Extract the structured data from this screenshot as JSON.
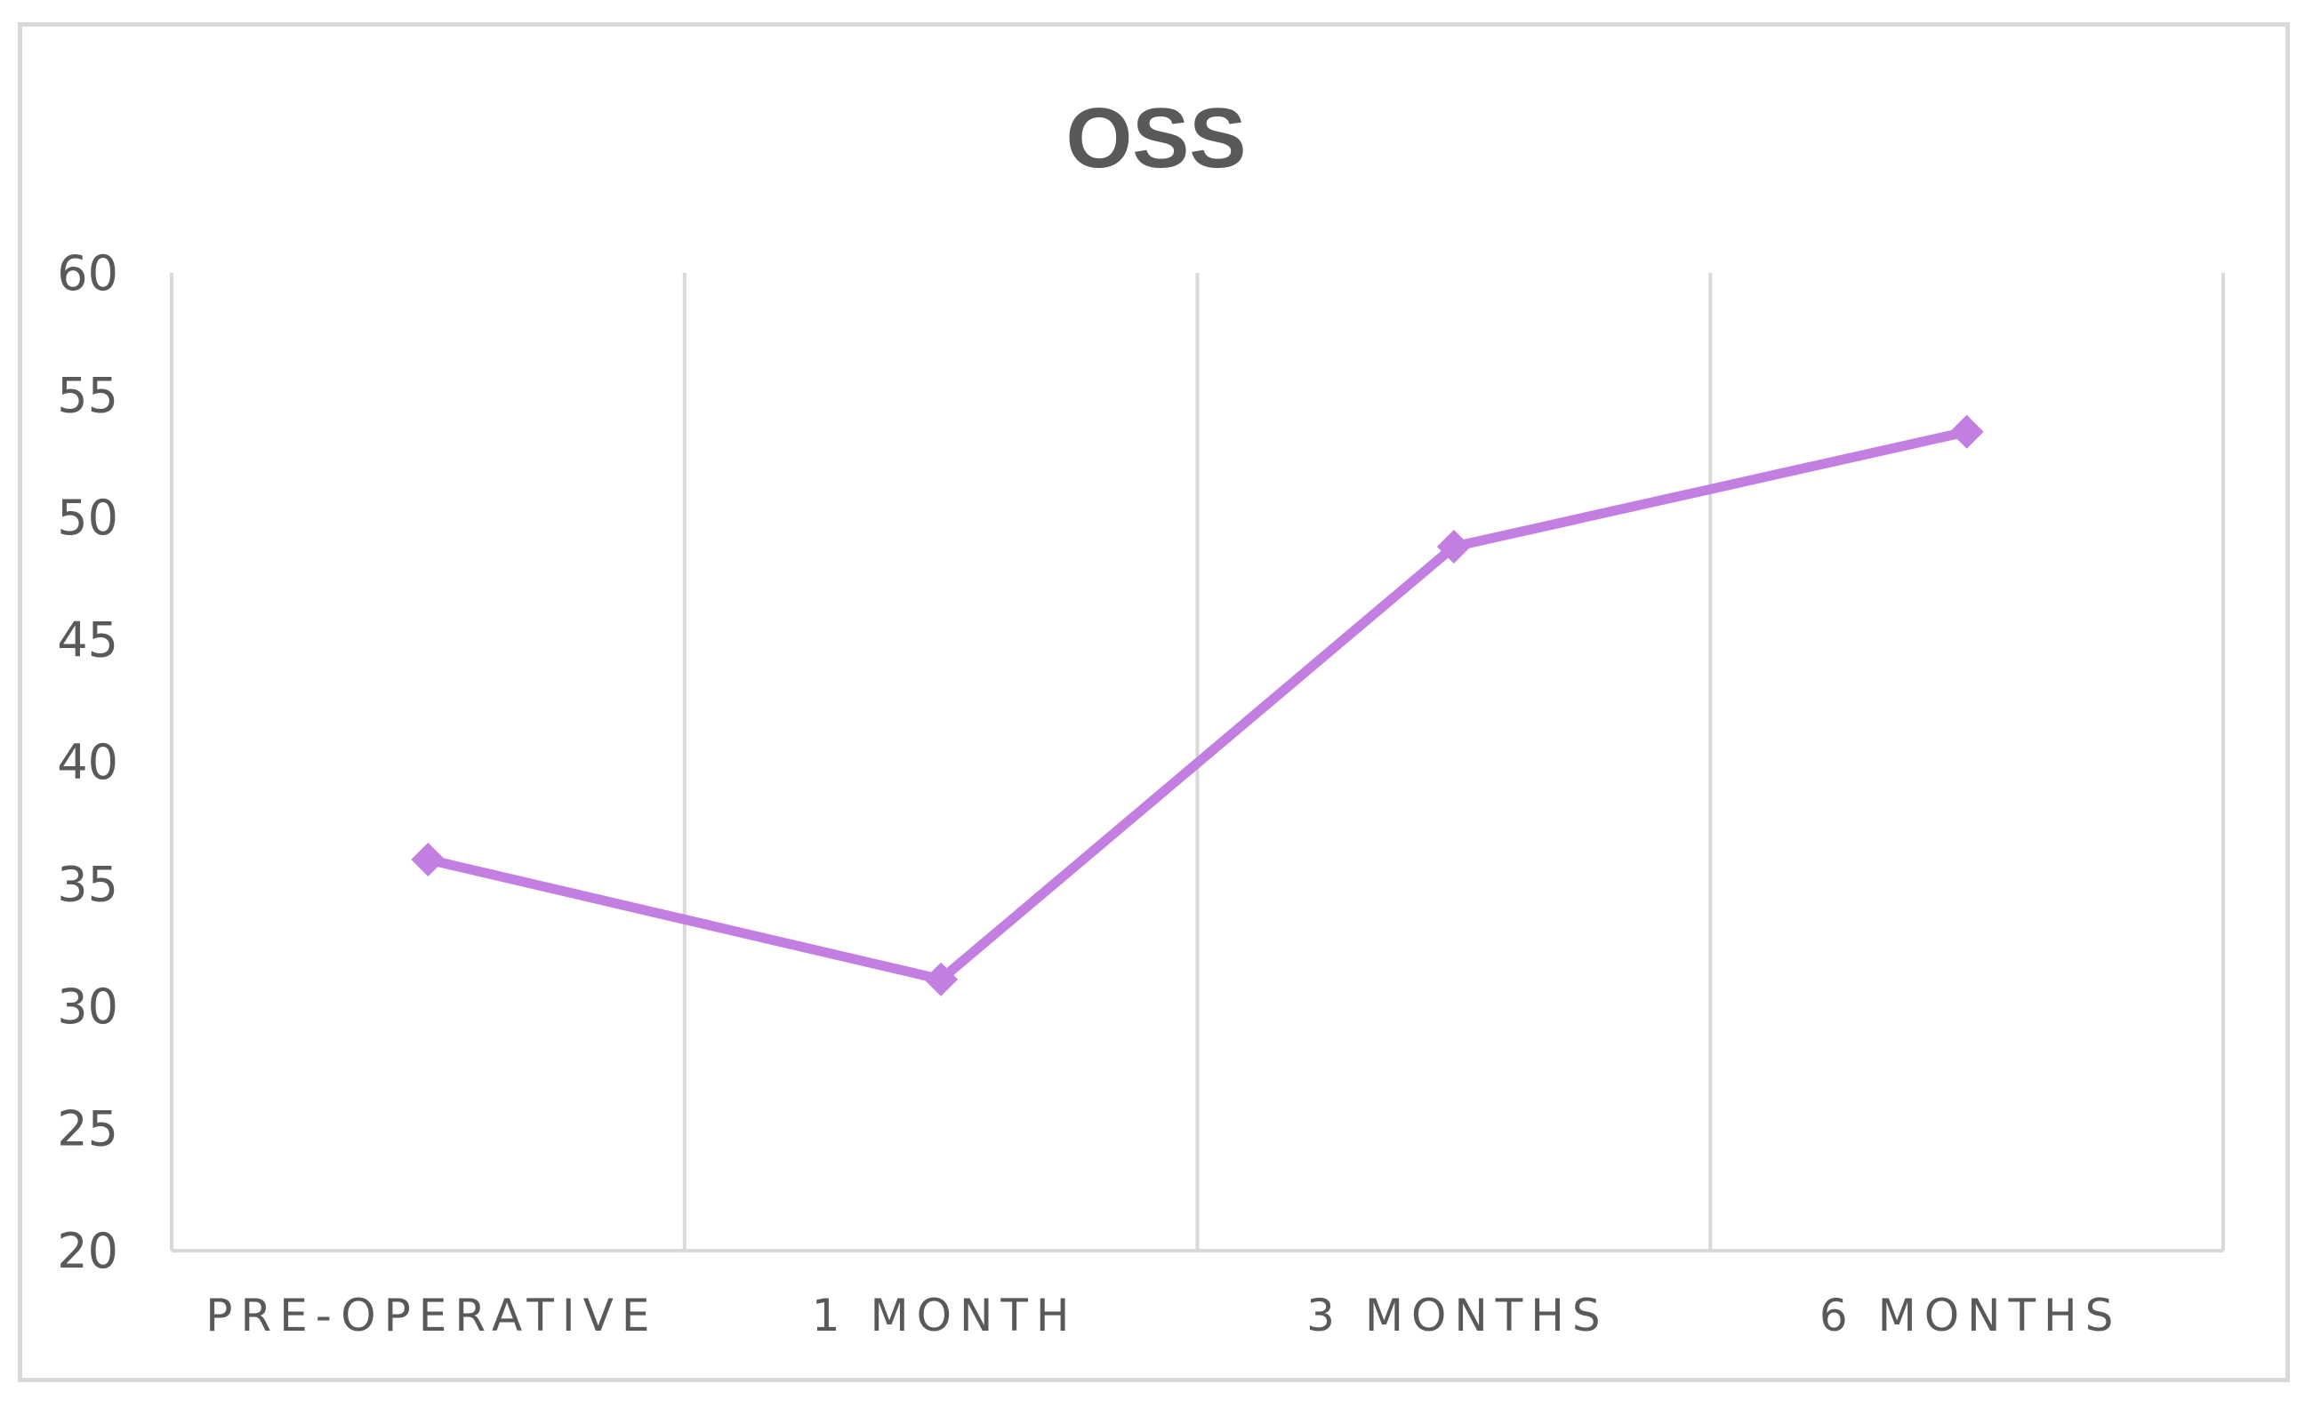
{
  "chart_data": {
    "type": "line",
    "title": "OSS",
    "xlabel": "",
    "ylabel": "",
    "categories": [
      "PRE-OPERATIVE",
      "1 MONTH",
      "3 MONTHS",
      "6 MONTHS"
    ],
    "series": [
      {
        "values": [
          36.0,
          31.1,
          48.8,
          53.5
        ],
        "color": "#c27ee0",
        "marker": "diamond"
      }
    ],
    "ylim": [
      20,
      60
    ],
    "yticks": [
      "20",
      "25",
      "30",
      "35",
      "40",
      "45",
      "50",
      "55",
      "60"
    ],
    "grid": "vertical",
    "legend": "none"
  }
}
